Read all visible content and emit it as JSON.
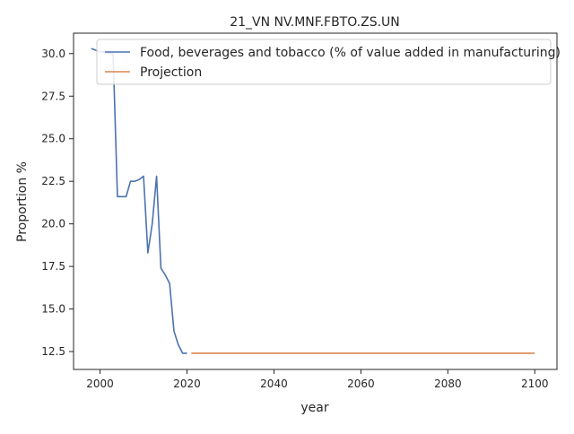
{
  "chart_data": {
    "type": "line",
    "title": "21_VN NV.MNF.FBTO.ZS.UN",
    "xlabel": "year",
    "ylabel": "Proportion %",
    "xlim": [
      1993.9,
      2105.1
    ],
    "ylim": [
      11.45,
      31.2
    ],
    "xticks": [
      2000,
      2020,
      2040,
      2060,
      2080,
      2100
    ],
    "yticks": [
      12.5,
      15.0,
      17.5,
      20.0,
      22.5,
      25.0,
      27.5,
      30.0
    ],
    "ytick_labels": [
      "12.5",
      "15.0",
      "17.5",
      "20.0",
      "22.5",
      "25.0",
      "27.5",
      "30.0"
    ],
    "grid": false,
    "legend_position": "top-right",
    "series": [
      {
        "name": "Food, beverages and tobacco (% of value added in manufacturing)",
        "color": "#4c72b0",
        "x": [
          1998,
          1999,
          2000,
          2001,
          2002,
          2003,
          2004,
          2005,
          2006,
          2007,
          2008,
          2009,
          2010,
          2011,
          2012,
          2013,
          2014,
          2015,
          2016,
          2017,
          2018,
          2019,
          2020
        ],
        "y": [
          30.3,
          30.2,
          30.1,
          30.1,
          30.0,
          30.0,
          21.6,
          21.6,
          21.6,
          22.5,
          22.5,
          22.6,
          22.8,
          18.3,
          20.0,
          22.8,
          17.4,
          17.0,
          16.5,
          13.7,
          12.9,
          12.4,
          12.4
        ]
      },
      {
        "name": "Projection",
        "color": "#dd8452",
        "x": [
          2021,
          2100
        ],
        "y": [
          12.4,
          12.4
        ]
      }
    ]
  }
}
